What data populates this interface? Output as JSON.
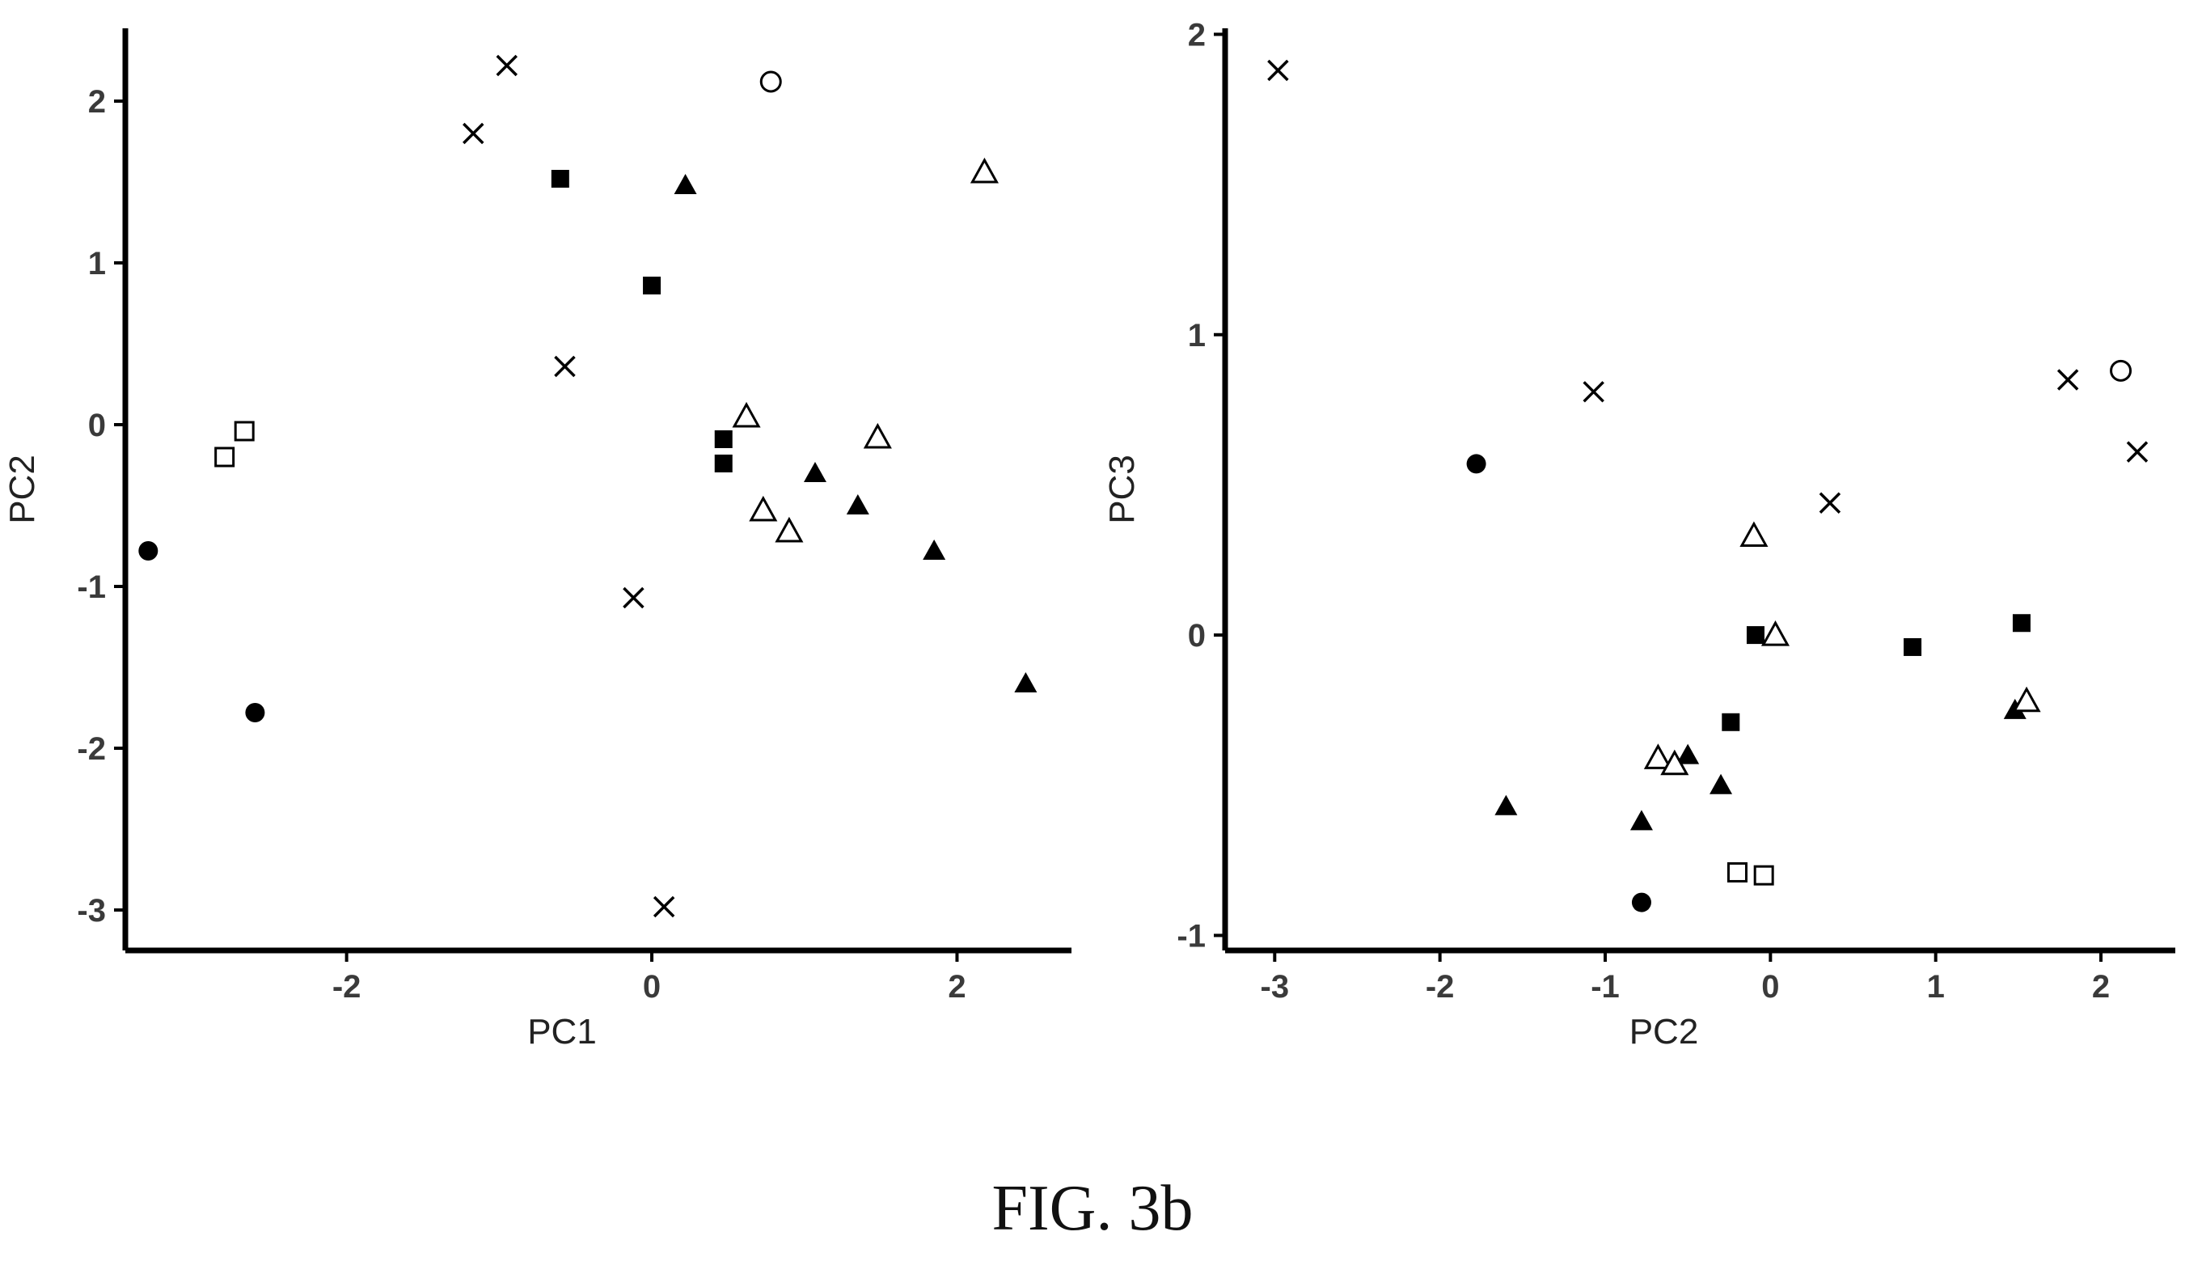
{
  "caption": "FIG. 3b",
  "chart_data": [
    {
      "type": "scatter",
      "title": "",
      "xlabel": "PC1",
      "ylabel": "PC2",
      "xlim": [
        -3.45,
        2.75
      ],
      "ylim": [
        -3.25,
        2.45
      ],
      "xticks": [
        {
          "value": -2,
          "label": "-2"
        },
        {
          "value": 0,
          "label": "0"
        },
        {
          "value": 2,
          "label": "2"
        }
      ],
      "yticks": [
        {
          "value": 2,
          "label": "2"
        },
        {
          "value": 1,
          "label": "1"
        },
        {
          "value": 0,
          "label": "0"
        },
        {
          "value": -1,
          "label": "-1"
        },
        {
          "value": -2,
          "label": "-2"
        },
        {
          "value": -3,
          "label": "-3"
        }
      ],
      "grid": false,
      "series": [
        {
          "marker": "filled-circle",
          "points": [
            [
              -3.3,
              -0.78
            ],
            [
              -2.6,
              -1.78
            ]
          ]
        },
        {
          "marker": "open-square",
          "points": [
            [
              -2.8,
              -0.2
            ],
            [
              -2.67,
              -0.04
            ]
          ]
        },
        {
          "marker": "cross",
          "points": [
            [
              -0.95,
              2.22
            ],
            [
              -1.17,
              1.8
            ],
            [
              -0.57,
              0.36
            ],
            [
              -0.12,
              -1.07
            ],
            [
              0.08,
              -2.98
            ]
          ]
        },
        {
          "marker": "filled-square",
          "points": [
            [
              -0.6,
              1.52
            ],
            [
              0.0,
              0.86
            ],
            [
              0.47,
              -0.09
            ],
            [
              0.47,
              -0.24
            ]
          ]
        },
        {
          "marker": "filled-triangle",
          "points": [
            [
              0.22,
              1.48
            ],
            [
              1.07,
              -0.3
            ],
            [
              1.35,
              -0.5
            ],
            [
              1.85,
              -0.78
            ],
            [
              2.45,
              -1.6
            ]
          ]
        },
        {
          "marker": "open-circle",
          "points": [
            [
              0.78,
              2.12
            ]
          ]
        },
        {
          "marker": "open-triangle",
          "points": [
            [
              0.62,
              0.05
            ],
            [
              0.73,
              -0.53
            ],
            [
              0.9,
              -0.66
            ],
            [
              1.48,
              -0.08
            ],
            [
              2.18,
              1.56
            ]
          ]
        }
      ]
    },
    {
      "type": "scatter",
      "title": "",
      "xlabel": "PC2",
      "ylabel": "PC3",
      "xlim": [
        -3.3,
        2.45
      ],
      "ylim": [
        -1.05,
        2.02
      ],
      "xticks": [
        {
          "value": -3,
          "label": "-3"
        },
        {
          "value": -2,
          "label": "-2"
        },
        {
          "value": -1,
          "label": "-1"
        },
        {
          "value": 0,
          "label": "0"
        },
        {
          "value": 1,
          "label": "1"
        },
        {
          "value": 2,
          "label": "2"
        }
      ],
      "yticks": [
        {
          "value": 2,
          "label": "2"
        },
        {
          "value": 1,
          "label": "1"
        },
        {
          "value": 0,
          "label": "0"
        },
        {
          "value": -1,
          "label": "-1"
        }
      ],
      "grid": false,
      "series": [
        {
          "marker": "filled-circle",
          "points": [
            [
              -1.78,
              0.57
            ],
            [
              -0.78,
              -0.89
            ]
          ]
        },
        {
          "marker": "open-square",
          "points": [
            [
              -0.2,
              -0.79
            ],
            [
              -0.04,
              -0.8
            ]
          ]
        },
        {
          "marker": "cross",
          "points": [
            [
              -2.98,
              1.88
            ],
            [
              -1.07,
              0.81
            ],
            [
              0.36,
              0.44
            ],
            [
              1.8,
              0.85
            ],
            [
              2.22,
              0.61
            ]
          ]
        },
        {
          "marker": "filled-square",
          "points": [
            [
              -0.09,
              0.0
            ],
            [
              -0.24,
              -0.29
            ],
            [
              0.86,
              -0.04
            ],
            [
              1.52,
              0.04
            ]
          ]
        },
        {
          "marker": "filled-triangle",
          "points": [
            [
              -1.6,
              -0.57
            ],
            [
              -0.78,
              -0.62
            ],
            [
              -0.5,
              -0.4
            ],
            [
              -0.3,
              -0.5
            ],
            [
              1.48,
              -0.25
            ]
          ]
        },
        {
          "marker": "open-circle",
          "points": [
            [
              2.12,
              0.88
            ]
          ]
        },
        {
          "marker": "open-triangle",
          "points": [
            [
              -0.1,
              0.33
            ],
            [
              0.03,
              0.0
            ],
            [
              -0.68,
              -0.41
            ],
            [
              -0.58,
              -0.43
            ],
            [
              1.55,
              -0.22
            ]
          ]
        }
      ]
    }
  ]
}
